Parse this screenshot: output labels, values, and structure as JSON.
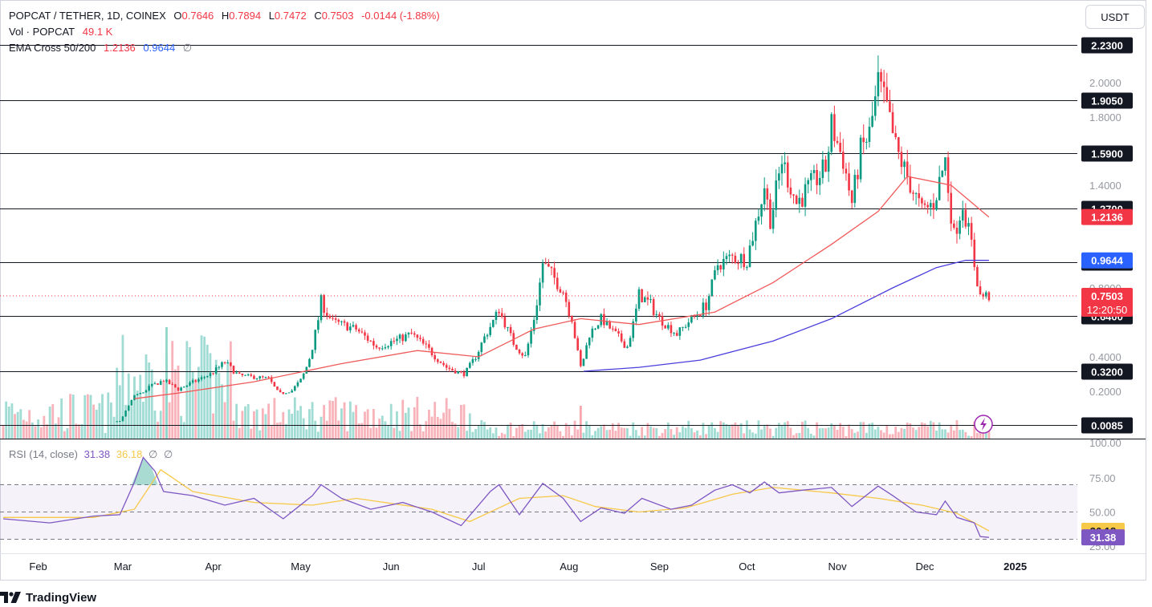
{
  "header": {
    "symbol": "POPCAT / TETHER, 1D, COINEX",
    "open_label": "O",
    "open": "0.7646",
    "high_label": "H",
    "high": "0.7894",
    "low_label": "L",
    "low": "0.7472",
    "close_label": "C",
    "close": "0.7503",
    "change": "-0.0144 (-1.88%)",
    "vol_label": "Vol · POPCAT",
    "vol_value": "49.1 K",
    "ema_label": "EMA Cross 50/200",
    "ema50": "1.2136",
    "ema200": "0.9644",
    "ema_extra": "∅"
  },
  "currency_button": "USDT",
  "rsi": {
    "label": "RSI (14, close)",
    "value": "31.38",
    "ma_value": "36.18",
    "extra1": "∅",
    "extra2": "∅"
  },
  "footer": {
    "brand": "TradingView",
    "icon": "tradingview-logo-icon"
  },
  "colors": {
    "up": "#089981",
    "down": "#f23645",
    "ema50": "#f05a5a",
    "ema200": "#4b3fdc",
    "rsi": "#7e57c2",
    "rsi_ma": "#f7c948",
    "lines": "#131722"
  },
  "chart_data": {
    "type": "candlestick",
    "y_axis": {
      "ticks": [
        "2.0000",
        "1.8000",
        "1.4000",
        "0.8000",
        "0.4000",
        "0.2000"
      ],
      "scale": "log"
    },
    "x_axis": {
      "ticks": [
        "Feb",
        "Mar",
        "Apr",
        "May",
        "Jun",
        "Jul",
        "Aug",
        "Sep",
        "Oct",
        "Nov",
        "Dec",
        "2025"
      ]
    },
    "horizontal_levels": [
      "2.2300",
      "1.9050",
      "1.5900",
      "1.2700",
      "0.9550",
      "0.6400",
      "0.3200",
      "0.0085"
    ],
    "price_badges": {
      "ema50": "1.2136",
      "ema200": "0.9644",
      "last": "0.7503",
      "countdown": "12:20:50"
    },
    "price_path": [
      [
        "2024-01-20",
        0.0085
      ],
      [
        "2024-02-20",
        0.0085
      ],
      [
        "2024-02-29",
        0.012
      ],
      [
        "2024-03-05",
        0.14
      ],
      [
        "2024-03-10",
        0.22
      ],
      [
        "2024-03-15",
        0.26
      ],
      [
        "2024-03-20",
        0.21
      ],
      [
        "2024-03-31",
        0.3
      ],
      [
        "2024-04-05",
        0.37
      ],
      [
        "2024-04-10",
        0.29
      ],
      [
        "2024-04-20",
        0.27
      ],
      [
        "2024-04-25",
        0.16
      ],
      [
        "2024-05-01",
        0.26
      ],
      [
        "2024-05-05",
        0.45
      ],
      [
        "2024-05-08",
        0.72
      ],
      [
        "2024-05-12",
        0.6
      ],
      [
        "2024-05-20",
        0.55
      ],
      [
        "2024-05-27",
        0.45
      ],
      [
        "2024-06-02",
        0.48
      ],
      [
        "2024-06-08",
        0.52
      ],
      [
        "2024-06-15",
        0.42
      ],
      [
        "2024-06-20",
        0.34
      ],
      [
        "2024-06-26",
        0.3
      ],
      [
        "2024-07-03",
        0.5
      ],
      [
        "2024-07-08",
        0.68
      ],
      [
        "2024-07-13",
        0.47
      ],
      [
        "2024-07-17",
        0.4
      ],
      [
        "2024-07-20",
        0.62
      ],
      [
        "2024-07-23",
        0.95
      ],
      [
        "2024-07-26",
        0.88
      ],
      [
        "2024-07-30",
        0.78
      ],
      [
        "2024-08-02",
        0.62
      ],
      [
        "2024-08-05",
        0.34
      ],
      [
        "2024-08-08",
        0.52
      ],
      [
        "2024-08-12",
        0.62
      ],
      [
        "2024-08-18",
        0.5
      ],
      [
        "2024-08-21",
        0.45
      ],
      [
        "2024-08-25",
        0.76
      ],
      [
        "2024-08-29",
        0.7
      ],
      [
        "2024-09-02",
        0.6
      ],
      [
        "2024-09-07",
        0.52
      ],
      [
        "2024-09-12",
        0.62
      ],
      [
        "2024-09-17",
        0.7
      ],
      [
        "2024-09-21",
        0.94
      ],
      [
        "2024-09-26",
        0.98
      ],
      [
        "2024-10-01",
        0.97
      ],
      [
        "2024-10-05",
        1.25
      ],
      [
        "2024-10-07",
        1.4
      ],
      [
        "2024-10-09",
        1.2
      ],
      [
        "2024-10-13",
        1.55
      ],
      [
        "2024-10-18",
        1.3
      ],
      [
        "2024-10-23",
        1.4
      ],
      [
        "2024-10-28",
        1.5
      ],
      [
        "2024-10-30",
        1.75
      ],
      [
        "2024-11-03",
        1.55
      ],
      [
        "2024-11-06",
        1.3
      ],
      [
        "2024-11-09",
        1.6
      ],
      [
        "2024-11-12",
        1.7
      ],
      [
        "2024-11-15",
        2.0
      ],
      [
        "2024-11-18",
        1.85
      ],
      [
        "2024-11-21",
        1.62
      ],
      [
        "2024-11-25",
        1.45
      ],
      [
        "2024-11-30",
        1.25
      ],
      [
        "2024-12-04",
        1.3
      ],
      [
        "2024-12-08",
        1.55
      ],
      [
        "2024-12-11",
        1.1
      ],
      [
        "2024-12-14",
        1.3
      ],
      [
        "2024-12-17",
        1.05
      ],
      [
        "2024-12-20",
        0.75
      ],
      [
        "2024-12-23",
        0.7503
      ]
    ],
    "ema50_path": [
      [
        "2024-03-05",
        0.1
      ],
      [
        "2024-03-20",
        0.17
      ],
      [
        "2024-04-15",
        0.25
      ],
      [
        "2024-05-15",
        0.36
      ],
      [
        "2024-06-10",
        0.43
      ],
      [
        "2024-07-01",
        0.4
      ],
      [
        "2024-07-20",
        0.55
      ],
      [
        "2024-08-05",
        0.62
      ],
      [
        "2024-08-25",
        0.58
      ],
      [
        "2024-09-20",
        0.66
      ],
      [
        "2024-10-10",
        0.83
      ],
      [
        "2024-10-30",
        1.05
      ],
      [
        "2024-11-15",
        1.25
      ],
      [
        "2024-11-25",
        1.45
      ],
      [
        "2024-12-10",
        1.4
      ],
      [
        "2024-12-23",
        1.2136
      ]
    ],
    "ema200_path": [
      [
        "2024-08-06",
        0.32
      ],
      [
        "2024-08-25",
        0.34
      ],
      [
        "2024-09-15",
        0.38
      ],
      [
        "2024-10-10",
        0.48
      ],
      [
        "2024-10-30",
        0.62
      ],
      [
        "2024-11-20",
        0.8
      ],
      [
        "2024-12-05",
        0.92
      ],
      [
        "2024-12-15",
        0.965
      ],
      [
        "2024-12-23",
        0.9644
      ]
    ],
    "rsi_panel": {
      "levels": [
        "75.00",
        "50.00",
        "25.00"
      ],
      "badges": {
        "ma": "36.18",
        "rsi": "31.38"
      },
      "bands": [
        70,
        50,
        30
      ],
      "rsi_path": [
        [
          "2024-01-20",
          45
        ],
        [
          "2024-02-05",
          42
        ],
        [
          "2024-02-20",
          47
        ],
        [
          "2024-02-29",
          48
        ],
        [
          "2024-03-05",
          72
        ],
        [
          "2024-03-08",
          90
        ],
        [
          "2024-03-12",
          80
        ],
        [
          "2024-03-15",
          65
        ],
        [
          "2024-03-25",
          62
        ],
        [
          "2024-04-05",
          55
        ],
        [
          "2024-04-15",
          60
        ],
        [
          "2024-04-25",
          45
        ],
        [
          "2024-05-05",
          62
        ],
        [
          "2024-05-08",
          70
        ],
        [
          "2024-05-15",
          60
        ],
        [
          "2024-05-25",
          52
        ],
        [
          "2024-06-05",
          57
        ],
        [
          "2024-06-15",
          50
        ],
        [
          "2024-06-25",
          40
        ],
        [
          "2024-07-05",
          65
        ],
        [
          "2024-07-08",
          70
        ],
        [
          "2024-07-15",
          48
        ],
        [
          "2024-07-23",
          71
        ],
        [
          "2024-07-30",
          60
        ],
        [
          "2024-08-05",
          43
        ],
        [
          "2024-08-12",
          53
        ],
        [
          "2024-08-20",
          49
        ],
        [
          "2024-08-26",
          60
        ],
        [
          "2024-09-05",
          52
        ],
        [
          "2024-09-12",
          55
        ],
        [
          "2024-09-20",
          66
        ],
        [
          "2024-09-26",
          70
        ],
        [
          "2024-10-02",
          64
        ],
        [
          "2024-10-07",
          72
        ],
        [
          "2024-10-12",
          64
        ],
        [
          "2024-10-20",
          66
        ],
        [
          "2024-10-30",
          68
        ],
        [
          "2024-11-06",
          54
        ],
        [
          "2024-11-15",
          69
        ],
        [
          "2024-11-20",
          62
        ],
        [
          "2024-11-28",
          50
        ],
        [
          "2024-12-05",
          48
        ],
        [
          "2024-12-08",
          58
        ],
        [
          "2024-12-12",
          46
        ],
        [
          "2024-12-18",
          42
        ],
        [
          "2024-12-20",
          32
        ],
        [
          "2024-12-23",
          31.38
        ]
      ],
      "ma_path": [
        [
          "2024-01-20",
          46
        ],
        [
          "2024-02-20",
          46
        ],
        [
          "2024-03-05",
          52
        ],
        [
          "2024-03-14",
          81
        ],
        [
          "2024-03-25",
          65
        ],
        [
          "2024-04-15",
          57
        ],
        [
          "2024-05-05",
          55
        ],
        [
          "2024-05-20",
          60
        ],
        [
          "2024-06-15",
          52
        ],
        [
          "2024-06-28",
          43
        ],
        [
          "2024-07-15",
          60
        ],
        [
          "2024-07-30",
          62
        ],
        [
          "2024-08-10",
          54
        ],
        [
          "2024-08-25",
          50
        ],
        [
          "2024-09-10",
          53
        ],
        [
          "2024-09-26",
          63
        ],
        [
          "2024-10-10",
          68
        ],
        [
          "2024-10-30",
          64
        ],
        [
          "2024-11-15",
          60
        ],
        [
          "2024-11-30",
          55
        ],
        [
          "2024-12-12",
          49
        ],
        [
          "2024-12-23",
          36.18
        ]
      ]
    }
  }
}
